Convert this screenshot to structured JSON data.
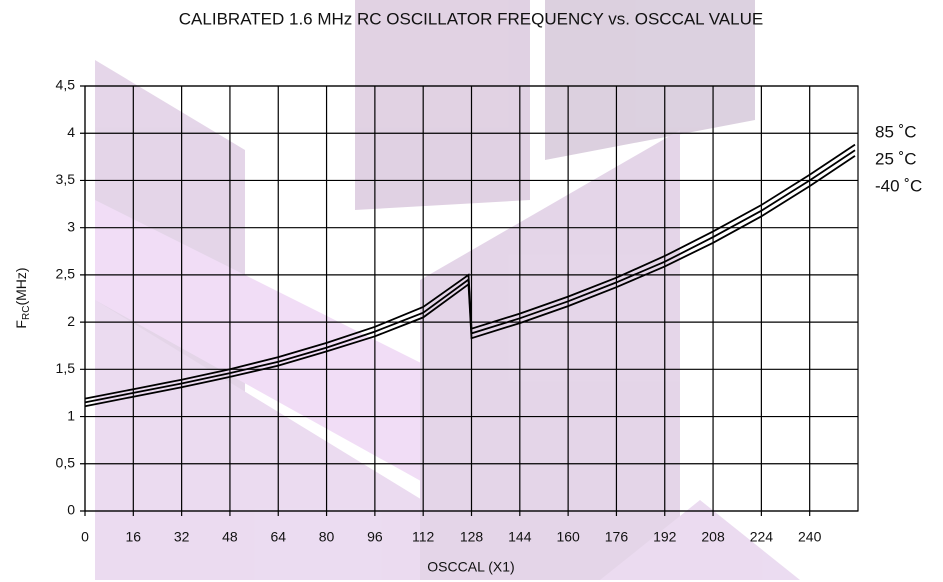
{
  "chart_data": {
    "type": "line",
    "title": "CALIBRATED 1.6 MHz RC OSCILLATOR FREQUENCY vs. OSCCAL VALUE",
    "x_label": "OSCCAL (X1)",
    "y_label": [
      "F",
      "RC",
      "(MHz)"
    ],
    "x": [
      0,
      16,
      32,
      48,
      64,
      80,
      96,
      112,
      127,
      128,
      144,
      160,
      176,
      192,
      208,
      224,
      240,
      255
    ],
    "series": [
      {
        "name": "85 ˚C",
        "color": "#000000",
        "values": [
          1.19,
          1.29,
          1.39,
          1.5,
          1.63,
          1.78,
          1.95,
          2.16,
          2.5,
          1.93,
          2.09,
          2.27,
          2.47,
          2.7,
          2.96,
          3.24,
          3.56,
          3.88
        ]
      },
      {
        "name": "25 ˚C",
        "color": "#000000",
        "values": [
          1.15,
          1.25,
          1.35,
          1.46,
          1.58,
          1.73,
          1.9,
          2.1,
          2.45,
          1.88,
          2.04,
          2.22,
          2.42,
          2.64,
          2.9,
          3.18,
          3.5,
          3.82
        ]
      },
      {
        "name": "-40 ˚C",
        "color": "#000000",
        "values": [
          1.11,
          1.21,
          1.31,
          1.42,
          1.54,
          1.69,
          1.85,
          2.05,
          2.4,
          1.83,
          1.99,
          2.17,
          2.37,
          2.59,
          2.84,
          3.12,
          3.44,
          3.76
        ]
      }
    ],
    "xlim": [
      0,
      256
    ],
    "xticks": [
      0,
      16,
      32,
      48,
      64,
      80,
      96,
      112,
      128,
      144,
      160,
      176,
      192,
      208,
      224,
      240
    ],
    "ylim": [
      0,
      4.5
    ],
    "yticks": [
      0,
      {
        "value": 0.5,
        "label": "0,5"
      },
      1,
      {
        "value": 1.5,
        "label": "1,5"
      },
      2,
      {
        "value": 2.5,
        "label": "2,5"
      },
      3,
      {
        "value": 3.5,
        "label": "3,5"
      },
      4,
      {
        "value": 4.5,
        "label": "4,5"
      }
    ],
    "grid": true
  }
}
